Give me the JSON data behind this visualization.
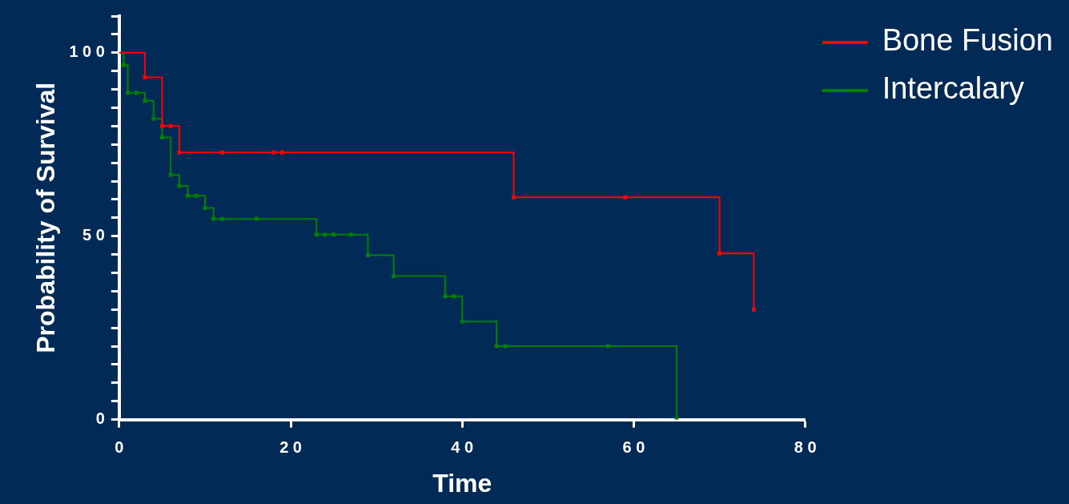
{
  "chart_data": {
    "type": "step",
    "xlabel": "Time",
    "ylabel": "Probability of Survival",
    "xlim": [
      0,
      80
    ],
    "xticks": [
      0,
      20,
      40,
      60,
      80
    ],
    "ylim": [
      0,
      110
    ],
    "yticks": [
      0,
      {
        "value": 5,
        "label": null
      },
      {
        "value": 10,
        "label": null
      },
      {
        "value": 15,
        "label": null
      },
      {
        "value": 20,
        "label": null
      },
      {
        "value": 25,
        "label": null
      },
      {
        "value": 30,
        "label": null
      },
      {
        "value": 35,
        "label": null
      },
      {
        "value": 40,
        "label": null
      },
      {
        "value": 45,
        "label": null
      },
      50,
      {
        "value": 55,
        "label": null
      },
      {
        "value": 60,
        "label": null
      },
      {
        "value": 65,
        "label": null
      },
      {
        "value": 70,
        "label": null
      },
      {
        "value": 75,
        "label": null
      },
      {
        "value": 80,
        "label": null
      },
      {
        "value": 85,
        "label": null
      },
      {
        "value": 90,
        "label": null
      },
      {
        "value": 95,
        "label": null
      },
      100,
      {
        "value": 105,
        "label": null
      },
      {
        "value": 110,
        "label": null
      }
    ],
    "grid": false,
    "legend": "top right",
    "marker": "square",
    "series": [
      {
        "name": "Bone Fusion",
        "color": "#ff0000",
        "x": [
          0,
          3,
          5,
          6,
          7,
          12,
          18,
          19,
          46,
          59,
          70,
          74
        ],
        "values": [
          100,
          93.3,
          80,
          80,
          72.8,
          72.8,
          72.8,
          72.8,
          60.6,
          60.6,
          45.3,
          30
        ]
      },
      {
        "name": "Intercalary",
        "color": "#008000",
        "x": [
          0,
          0.5,
          1,
          2,
          3,
          4,
          5,
          6,
          7,
          8,
          9,
          10,
          11,
          12,
          16,
          23,
          24,
          25,
          27,
          29,
          32,
          38,
          39,
          40,
          44,
          45,
          57,
          65
        ],
        "values": [
          100,
          96.6,
          89.1,
          89.1,
          86.9,
          82,
          76.9,
          66.7,
          63.7,
          61,
          61,
          57.7,
          54.7,
          54.7,
          54.7,
          50.4,
          50.4,
          50.4,
          50.4,
          44.8,
          39.1,
          33.6,
          33.6,
          26.7,
          20,
          20,
          20,
          0
        ]
      }
    ]
  }
}
